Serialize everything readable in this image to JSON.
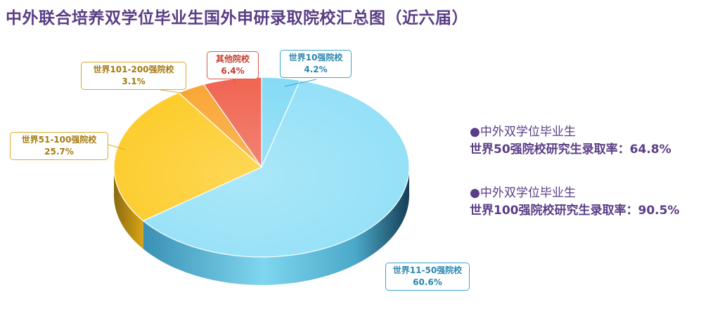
{
  "title": "中外联合培养双学位毕业生国外申研录取院校汇总图（近六届）",
  "chart_data": {
    "type": "pie",
    "title": "中外联合培养双学位毕业生国外申研录取院校汇总图（近六届）",
    "slices": [
      {
        "label": "世界10强院校",
        "value": 4.2,
        "value_label": "4.2%",
        "color": "#7fd9f5"
      },
      {
        "label": "世界11-50强院校",
        "value": 60.6,
        "value_label": "60.6%",
        "color": "#8fdff7"
      },
      {
        "label": "世界51-100强院校",
        "value": 25.7,
        "value_label": "25.7%",
        "color": "#fdc91d"
      },
      {
        "label": "世界101-200强院校",
        "value": 3.1,
        "value_label": "3.1%",
        "color": "#f9a128"
      },
      {
        "label": "其他院校",
        "value": 6.4,
        "value_label": "6.4%",
        "color": "#ef5d48"
      }
    ]
  },
  "stats": [
    {
      "bullet": "●",
      "subtitle": "中外双学位毕业生",
      "text": "世界50强院校研究生录取率：64.8%"
    },
    {
      "bullet": "●",
      "subtitle": "中外双学位毕业生",
      "text": "世界100强院校研究生录取率：90.5%"
    }
  ]
}
